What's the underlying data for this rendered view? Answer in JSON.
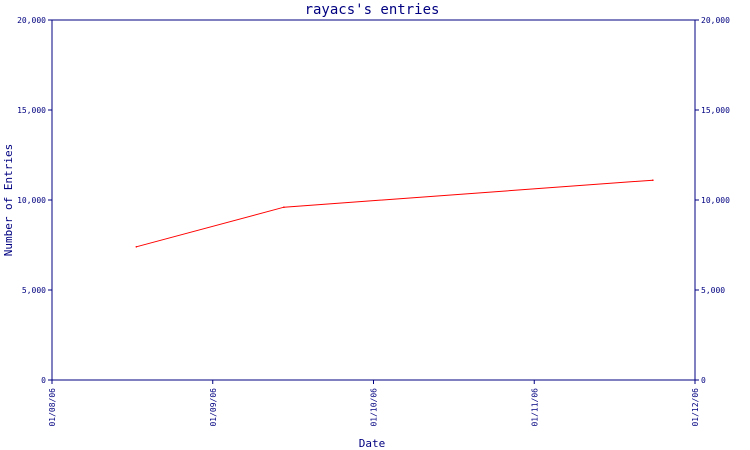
{
  "colors": {
    "axis": "#000080",
    "text": "#000080",
    "line": "#ff0000",
    "background": "#ffffff"
  },
  "chart_data": {
    "type": "line",
    "title": "rayacs's entries",
    "xlabel": "Date",
    "ylabel": "Number of Entries",
    "xlim": [
      "2006-08-01",
      "2006-12-01"
    ],
    "ylim": [
      0,
      20000
    ],
    "x_tick_labels": [
      "01/08/06",
      "01/09/06",
      "01/10/06",
      "01/11/06",
      "01/12/06"
    ],
    "y_tick_labels": [
      "0",
      "5,000",
      "10,000",
      "15,000",
      "20,000"
    ],
    "y_ticks_right": true,
    "grid": false,
    "legend": "none",
    "series": [
      {
        "color": "#ff0000",
        "x": [
          "2006-08-17",
          "2006-09-14",
          "2006-11-23"
        ],
        "y": [
          7400,
          9600,
          11100
        ]
      }
    ]
  }
}
